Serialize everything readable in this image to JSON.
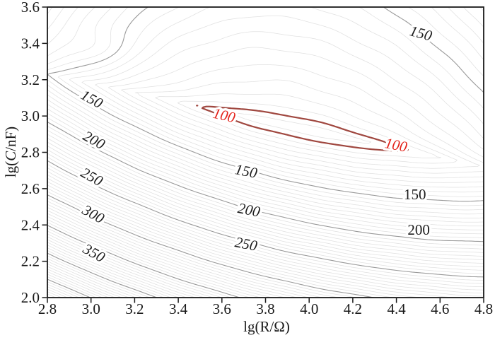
{
  "chart_data": {
    "type": "contour",
    "title": "",
    "xlabel": "lg(R/Ω)",
    "ylabel": "lg(C/nF)",
    "xlabel_parts": {
      "pre": "lg(",
      "var": "R",
      "post": "/Ω)"
    },
    "ylabel_parts": {
      "pre": "lg(",
      "var": "C",
      "post": "/nF)"
    },
    "xlim": [
      2.8,
      4.8
    ],
    "ylim": [
      2.0,
      3.6
    ],
    "x_ticks": [
      "2.8",
      "3.0",
      "3.2",
      "3.4",
      "3.6",
      "3.8",
      "4.0",
      "4.2",
      "4.4",
      "4.6",
      "4.8"
    ],
    "y_ticks": [
      "2.0",
      "2.2",
      "2.4",
      "2.6",
      "2.8",
      "3.0",
      "3.2",
      "3.4",
      "3.6"
    ],
    "grid": false,
    "legend": "none",
    "contour_levels": {
      "minor_step": 5,
      "major_step": 50,
      "min_level": 95,
      "max_level": 485,
      "highlight_level": 100,
      "labeled_major_levels": [
        150,
        200,
        250,
        300,
        350
      ]
    },
    "contour_labels": [
      {
        "text": "150",
        "x": 3.004,
        "y": 3.094,
        "rot": 29,
        "kind": "gray-italic"
      },
      {
        "text": "200",
        "x": 3.014,
        "y": 2.868,
        "rot": 29,
        "kind": "gray-italic"
      },
      {
        "text": "250",
        "x": 3.004,
        "y": 2.666,
        "rot": 29,
        "kind": "gray-italic"
      },
      {
        "text": "300",
        "x": 3.011,
        "y": 2.46,
        "rot": 29,
        "kind": "gray-italic"
      },
      {
        "text": "350",
        "x": 3.014,
        "y": 2.246,
        "rot": 29,
        "kind": "gray-italic"
      },
      {
        "text": "150",
        "x": 3.711,
        "y": 2.697,
        "rot": 11,
        "kind": "gray-italic"
      },
      {
        "text": "200",
        "x": 3.724,
        "y": 2.483,
        "rot": 11,
        "kind": "gray-italic"
      },
      {
        "text": "250",
        "x": 3.711,
        "y": 2.296,
        "rot": 11,
        "kind": "gray-italic"
      },
      {
        "text": "150",
        "x": 4.485,
        "y": 2.568,
        "rot": 0,
        "kind": "gray-upright"
      },
      {
        "text": "200",
        "x": 4.502,
        "y": 2.374,
        "rot": 0,
        "kind": "gray-upright"
      },
      {
        "text": "150",
        "x": 4.512,
        "y": 3.456,
        "rot": 15,
        "kind": "gray-italic"
      },
      {
        "text": "100",
        "x": 3.61,
        "y": 3.004,
        "rot": 13,
        "kind": "red-italic"
      },
      {
        "text": "100",
        "x": 4.398,
        "y": 2.841,
        "rot": 11,
        "kind": "red-italic"
      }
    ],
    "field_model": {
      "valley_line": {
        "a": 3.944,
        "b": -0.2547
      },
      "v_min": 90,
      "x0": 3.95,
      "kx_west": 45,
      "kx_east": 35,
      "up_sat": 12,
      "up_tau": 0.06,
      "up_lin": 55.6,
      "dn_lin": 170,
      "dn_quad": 85,
      "bump": {
        "amp": 8,
        "x": 3.05,
        "sx": 0.14,
        "y": 3.37,
        "sy": 0.1
      },
      "noise": {
        "amp": 0.5,
        "fx": 19,
        "px": 3,
        "fy": 14,
        "py": -2
      }
    },
    "colors": {
      "background": "#ffffff",
      "minor_line": "#e0e0e0",
      "major_line": "#9a9a9a",
      "highlight_line": "#a04840",
      "highlight_label": "#e32119",
      "text": "#1a1a1a",
      "frame": "#1a1a1a"
    }
  }
}
